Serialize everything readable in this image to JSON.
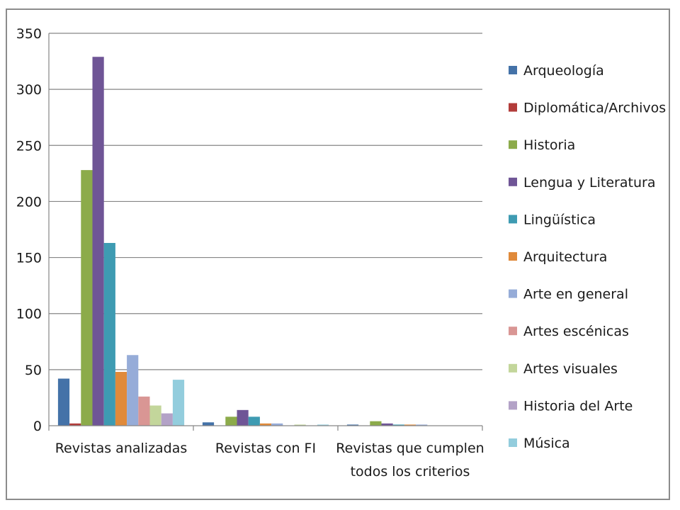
{
  "chart_data": {
    "type": "bar",
    "title": "",
    "xlabel": "",
    "ylabel": "",
    "ylim": [
      0,
      350
    ],
    "yticks": [
      0,
      50,
      100,
      150,
      200,
      250,
      300,
      350
    ],
    "grid": true,
    "legend_position": "right",
    "categories": [
      "Revistas analizadas",
      "Revistas con FI",
      "Revistas que cumplen todos los criterios"
    ],
    "category_lines": [
      [
        "Revistas analizadas"
      ],
      [
        "Revistas con FI"
      ],
      [
        "Revistas que cumplen",
        "todos los criterios"
      ]
    ],
    "series": [
      {
        "name": "Arqueología",
        "color": "#4472a8",
        "values": [
          42,
          3,
          1
        ]
      },
      {
        "name": "Diplomática/Archivos",
        "color": "#b23c3a",
        "values": [
          2,
          0,
          0
        ]
      },
      {
        "name": "Historia",
        "color": "#8cab4a",
        "values": [
          228,
          8,
          4
        ]
      },
      {
        "name": "Lengua y Literatura",
        "color": "#6f5596",
        "values": [
          329,
          14,
          2
        ]
      },
      {
        "name": "Lingüística",
        "color": "#3e9bb2",
        "values": [
          163,
          8,
          1
        ]
      },
      {
        "name": "Arquitectura",
        "color": "#e08a3a",
        "values": [
          48,
          2,
          1
        ]
      },
      {
        "name": "Arte en general",
        "color": "#96acd8",
        "values": [
          63,
          2,
          1
        ]
      },
      {
        "name": "Artes escénicas",
        "color": "#d99694",
        "values": [
          26,
          0,
          0
        ]
      },
      {
        "name": "Artes visuales",
        "color": "#c3d69b",
        "values": [
          18,
          1,
          0
        ]
      },
      {
        "name": "Historia del Arte",
        "color": "#b3a2c7",
        "values": [
          11,
          0,
          0
        ]
      },
      {
        "name": "Música",
        "color": "#93cddd",
        "values": [
          41,
          1,
          0
        ]
      }
    ]
  }
}
